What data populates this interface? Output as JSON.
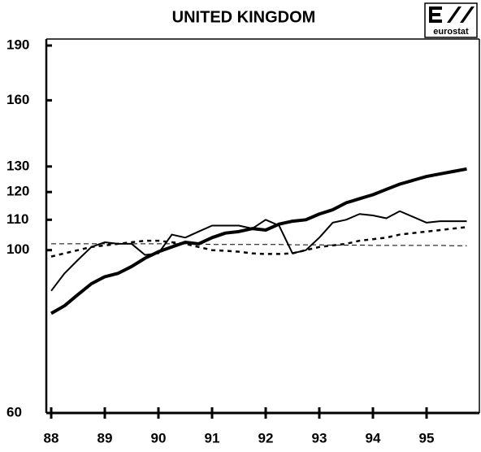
{
  "chart_data": {
    "type": "line",
    "title": "UNITED KINGDOM",
    "logo_text": "eurostat",
    "log_scale": true,
    "x": [
      1988,
      1988.25,
      1988.5,
      1988.75,
      1989,
      1989.25,
      1989.5,
      1989.75,
      1990,
      1990.25,
      1990.5,
      1990.75,
      1991,
      1991.25,
      1991.5,
      1991.75,
      1992,
      1992.25,
      1992.5,
      1992.75,
      1993,
      1993.25,
      1993.5,
      1993.75,
      1994,
      1994.25,
      1994.5,
      1994.75,
      1995,
      1995.25,
      1995.5,
      1995.75
    ],
    "series": [
      {
        "color": "#000",
        "width": 4,
        "dash": "none",
        "values": [
          82,
          84,
          87,
          90,
          92,
          93,
          95,
          97.5,
          99.5,
          101,
          102.5,
          102,
          104,
          105.5,
          106,
          107,
          106.5,
          108.5,
          109.5,
          110,
          112,
          113.5,
          116,
          117.5,
          119,
          121,
          123,
          124.5,
          126,
          127,
          128,
          129
        ]
      },
      {
        "color": "#000",
        "width": 2,
        "dash": "none",
        "values": [
          88,
          93,
          97,
          101,
          102.5,
          102,
          102,
          98.5,
          99,
          105,
          104,
          106,
          108,
          108,
          108,
          107,
          110,
          108,
          99,
          100,
          104,
          109,
          110,
          112,
          111.5,
          110.5,
          113,
          111,
          109,
          109.5,
          109.5,
          109.5
        ]
      },
      {
        "color": "#000",
        "width": 2.5,
        "dash": "5 5",
        "values": [
          98,
          99,
          100,
          101,
          101.5,
          102,
          102.5,
          103,
          103,
          102.5,
          102,
          101,
          100,
          99.8,
          99.5,
          99,
          98.8,
          98.8,
          99,
          100,
          101,
          101.5,
          102,
          103,
          103.5,
          104,
          105,
          105.5,
          106,
          106.5,
          107,
          107.5
        ]
      },
      {
        "color": "#000",
        "width": 1,
        "dash": "6 4",
        "values": [
          102,
          102,
          102,
          102,
          102,
          102,
          102,
          102,
          102,
          102,
          102,
          102,
          101.8,
          101.8,
          101.8,
          101.8,
          101.8,
          101.8,
          101.7,
          101.7,
          101.7,
          101.6,
          101.6,
          101.6,
          101.5,
          101.5,
          101.5,
          101.5,
          101.5,
          101.5,
          101.4,
          101.4
        ]
      }
    ],
    "xlim": [
      1988,
      1996
    ],
    "xticks": [
      {
        "value": 1988,
        "label": "88"
      },
      {
        "value": 1989,
        "label": "89"
      },
      {
        "value": 1990,
        "label": "90"
      },
      {
        "value": 1991,
        "label": "91"
      },
      {
        "value": 1992,
        "label": "92"
      },
      {
        "value": 1993,
        "label": "93"
      },
      {
        "value": 1994,
        "label": "94"
      },
      {
        "value": 1995,
        "label": "95"
      }
    ],
    "ylim": [
      60,
      190
    ],
    "yticks": [
      60,
      100,
      110,
      120,
      130,
      160,
      190
    ]
  }
}
